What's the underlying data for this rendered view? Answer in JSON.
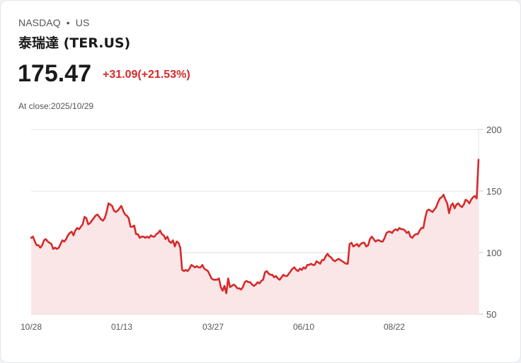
{
  "header": {
    "exchange": "NASDAQ",
    "separator": "•",
    "market": "US",
    "title": "泰瑞達 (TER.US)"
  },
  "quote": {
    "price": "175.47",
    "change": "+31.09(+21.53%)",
    "change_color": "#d62a2a",
    "close_label": "At close:2025/10/29"
  },
  "chart_data": {
    "type": "area",
    "title": "泰瑞達 (TER.US)",
    "xlabel": "",
    "ylabel": "",
    "ylim": [
      50,
      200
    ],
    "yticks": [
      50,
      100,
      150,
      200
    ],
    "xticks": [
      "10/28",
      "01/13",
      "03/27",
      "06/10",
      "08/22"
    ],
    "grid": true,
    "line_color": "#d62a2a",
    "fill_color": "#fbe6e7",
    "series": [
      {
        "name": "TER.US",
        "values": [
          112,
          113,
          109,
          106,
          106,
          104,
          106,
          110,
          111,
          109,
          108,
          107,
          103,
          104,
          103,
          104,
          107,
          110,
          109,
          111,
          114,
          116,
          117,
          114,
          118,
          120,
          119,
          121,
          123,
          129,
          128,
          123,
          124,
          126,
          128,
          130,
          131,
          129,
          127,
          126,
          128,
          133,
          140,
          139,
          138,
          134,
          133,
          134,
          136,
          138,
          134,
          131,
          130,
          128,
          121,
          121,
          122,
          115,
          115,
          112,
          113,
          113,
          112,
          113,
          112,
          114,
          113,
          113,
          115,
          116,
          118,
          115,
          114,
          111,
          113,
          109,
          108,
          110,
          105,
          109,
          108,
          104,
          86,
          85,
          86,
          85,
          87,
          90,
          89,
          88,
          89,
          88,
          88,
          90,
          87,
          86,
          85,
          82,
          79,
          78,
          78,
          78,
          79,
          72,
          69,
          73,
          67,
          79,
          72,
          73,
          74,
          73,
          71,
          71,
          70,
          72,
          76,
          77,
          76,
          76,
          74,
          73,
          74,
          76,
          75,
          77,
          78,
          84,
          85,
          83,
          82,
          82,
          80,
          81,
          79,
          78,
          80,
          82,
          81,
          81,
          83,
          85,
          87,
          88,
          86,
          85,
          87,
          86,
          88,
          87,
          90,
          90,
          91,
          90,
          90,
          93,
          92,
          91,
          94,
          94,
          97,
          99,
          97,
          96,
          94,
          93,
          94,
          95,
          94,
          93,
          92,
          91,
          91,
          107,
          108,
          105,
          106,
          107,
          105,
          107,
          108,
          108,
          105,
          106,
          111,
          113,
          111,
          109,
          110,
          110,
          109,
          109,
          112,
          116,
          117,
          117,
          116,
          118,
          119,
          118,
          120,
          119,
          119,
          118,
          116,
          117,
          113,
          112,
          114,
          115,
          115,
          118,
          120,
          120,
          128,
          134,
          135,
          134,
          133,
          135,
          137,
          141,
          144,
          145,
          147,
          143,
          140,
          132,
          138,
          140,
          136,
          139,
          140,
          138,
          137,
          139,
          143,
          142,
          140,
          143,
          145,
          146,
          144,
          175.47
        ]
      }
    ]
  },
  "axes": {
    "y": [
      "200",
      "150",
      "100",
      "50"
    ],
    "x": [
      "10/28",
      "01/13",
      "03/27",
      "06/10",
      "08/22"
    ]
  }
}
